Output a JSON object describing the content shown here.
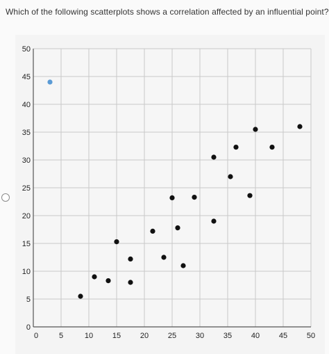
{
  "question": {
    "text": "Which of the following scatterplots shows a correlation affected by an influential point?"
  },
  "colors": {
    "point": "#111111",
    "influential_point": "#5b9bd5",
    "grid": "#c8c8c8",
    "axis": "#555555"
  },
  "chart_data": {
    "type": "scatter",
    "title": "",
    "xlabel": "",
    "ylabel": "",
    "xlim": [
      0,
      50
    ],
    "ylim": [
      0,
      50
    ],
    "x_ticks": [
      0,
      5,
      10,
      15,
      20,
      25,
      30,
      35,
      40,
      45,
      50
    ],
    "y_ticks": [
      0,
      5,
      10,
      15,
      20,
      25,
      30,
      35,
      40,
      45,
      50
    ],
    "grid": true,
    "series": [
      {
        "points": [
          {
            "x": 3,
            "y": 44,
            "highlight": true
          },
          {
            "x": 8.5,
            "y": 5.5
          },
          {
            "x": 11,
            "y": 9
          },
          {
            "x": 13.5,
            "y": 8.3
          },
          {
            "x": 15,
            "y": 15.3
          },
          {
            "x": 17.5,
            "y": 12.2
          },
          {
            "x": 17.5,
            "y": 8
          },
          {
            "x": 21.5,
            "y": 17.2
          },
          {
            "x": 23.5,
            "y": 12.5
          },
          {
            "x": 25,
            "y": 23.2
          },
          {
            "x": 26,
            "y": 17.8
          },
          {
            "x": 27,
            "y": 11
          },
          {
            "x": 29,
            "y": 23.3
          },
          {
            "x": 32.5,
            "y": 19
          },
          {
            "x": 32.5,
            "y": 30.5
          },
          {
            "x": 35.5,
            "y": 27
          },
          {
            "x": 36.5,
            "y": 32.3
          },
          {
            "x": 39,
            "y": 23.6
          },
          {
            "x": 40,
            "y": 35.5
          },
          {
            "x": 43,
            "y": 32.3
          },
          {
            "x": 48,
            "y": 36
          }
        ]
      }
    ]
  }
}
